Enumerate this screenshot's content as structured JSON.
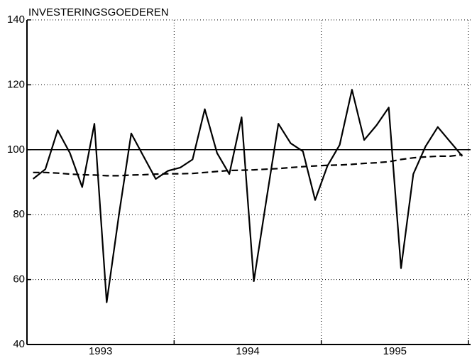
{
  "chart_data": {
    "type": "line",
    "title": "INVESTERINGSGOEDEREN",
    "categories": [
      null,
      null,
      null,
      null,
      null,
      null,
      null,
      null,
      null,
      null,
      null,
      null,
      null,
      null,
      null,
      null,
      null,
      null,
      null,
      null,
      null,
      null,
      null,
      null,
      null,
      null,
      null,
      null,
      null,
      null,
      null,
      null,
      null,
      null,
      null,
      null
    ],
    "periods": [
      "1993",
      "1994",
      "1995"
    ],
    "series": [
      {
        "color": "#000000",
        "dash": "none",
        "values": [
          91,
          94,
          106,
          99,
          88.5,
          108,
          53,
          80,
          105,
          98,
          91,
          93.5,
          94.5,
          97,
          112.5,
          99,
          92.5,
          110,
          59.5,
          84,
          108,
          102,
          99.5,
          84.5,
          95,
          101.5,
          118.5,
          103,
          107.5,
          113,
          63.5,
          92.5,
          101,
          107,
          102.5,
          98
        ]
      },
      {
        "color": "#000000",
        "dash": "9 5",
        "values": [
          93,
          93,
          92.8,
          92.5,
          92.3,
          92.2,
          92,
          92,
          92.2,
          92.3,
          92.5,
          92.6,
          92.6,
          92.7,
          93,
          93.3,
          93.6,
          93.7,
          93.8,
          94,
          94.2,
          94.5,
          94.8,
          95,
          95.2,
          95.3,
          95.5,
          95.8,
          96,
          96.3,
          97,
          97.5,
          97.8,
          98,
          98,
          98.5
        ]
      }
    ],
    "reference_line": 100,
    "ylim": [
      40,
      140
    ],
    "yticks": [
      40,
      60,
      80,
      100,
      120,
      140
    ],
    "grid": true
  }
}
